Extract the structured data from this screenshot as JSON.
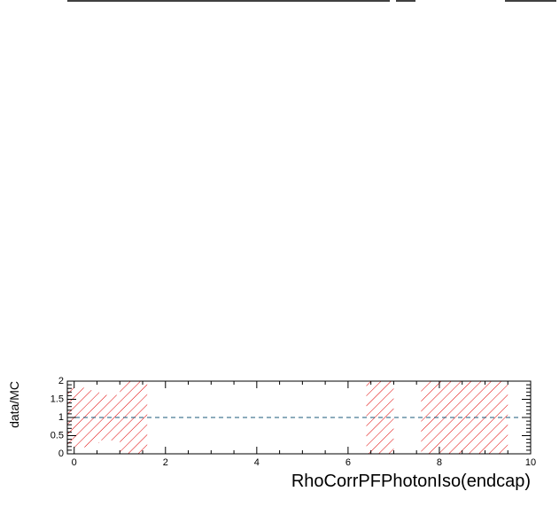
{
  "chart_data": {
    "type": "bar",
    "xlabel": "RhoCorrPFPhotonIso(endcap)",
    "ylabel": "data/MC",
    "xlim": [
      -0.15,
      10
    ],
    "ylim": [
      0,
      2
    ],
    "xticks": [
      "0",
      "2",
      "4",
      "6",
      "8",
      "10"
    ],
    "yticks": [
      "0",
      "0.5",
      "1",
      "1.5",
      "2"
    ],
    "reference_line": 1,
    "uncertainty_bands": [
      {
        "x0": -0.15,
        "x1": 0.35,
        "low": 0.18,
        "high": 1.82
      },
      {
        "x0": 0.35,
        "x1": 0.55,
        "low": 0.3,
        "high": 1.75
      },
      {
        "x0": 0.55,
        "x1": 1.0,
        "low": 0.37,
        "high": 1.62
      },
      {
        "x0": 1.0,
        "x1": 1.6,
        "low": 0.0,
        "high": 2.0
      },
      {
        "x0": 6.4,
        "x1": 7.0,
        "low": 0.0,
        "high": 2.0
      },
      {
        "x0": 7.6,
        "x1": 9.5,
        "low": 0.0,
        "high": 2.0
      }
    ],
    "colors": {
      "band": "#e00000",
      "reference": "#1a5a7a",
      "frame": "#000000"
    }
  }
}
